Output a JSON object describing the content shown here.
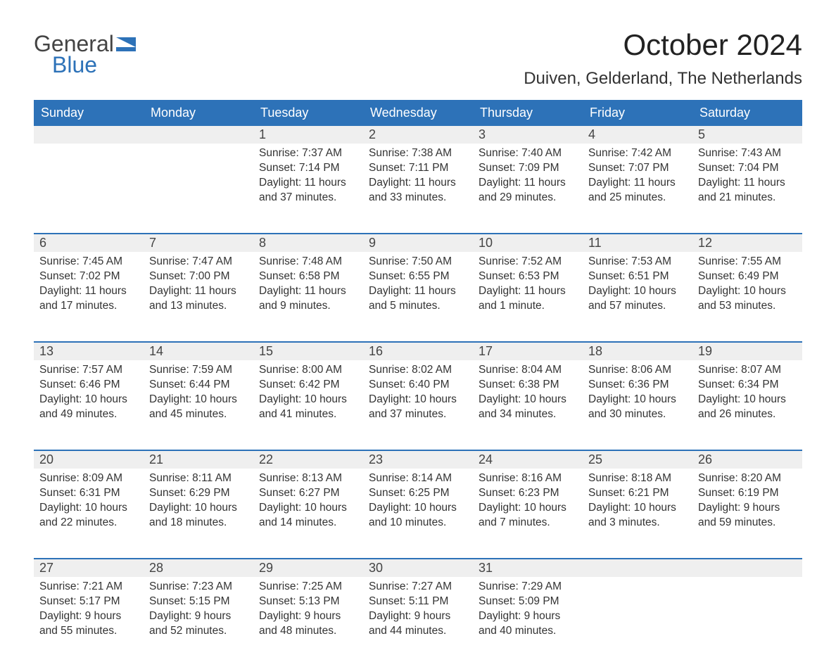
{
  "brand": {
    "part1": "General",
    "part2": "Blue",
    "flag_color": "#2d72b8"
  },
  "title": "October 2024",
  "location": "Duiven, Gelderland, The Netherlands",
  "colors": {
    "header_bg": "#2d72b8",
    "header_text": "#ffffff",
    "daynum_bg": "#efefef",
    "row_border": "#2d72b8",
    "text": "#333333",
    "page_bg": "#ffffff"
  },
  "layout": {
    "columns": 7,
    "rows": 5,
    "first_day_column": 2,
    "days_in_month": 31,
    "font_family": "Arial",
    "body_fontsize": 15.5,
    "header_fontsize": 18,
    "title_fontsize": 42,
    "location_fontsize": 24
  },
  "weekdays": [
    "Sunday",
    "Monday",
    "Tuesday",
    "Wednesday",
    "Thursday",
    "Friday",
    "Saturday"
  ],
  "days": {
    "1": {
      "sunrise": "7:37 AM",
      "sunset": "7:14 PM",
      "daylight": "11 hours and 37 minutes."
    },
    "2": {
      "sunrise": "7:38 AM",
      "sunset": "7:11 PM",
      "daylight": "11 hours and 33 minutes."
    },
    "3": {
      "sunrise": "7:40 AM",
      "sunset": "7:09 PM",
      "daylight": "11 hours and 29 minutes."
    },
    "4": {
      "sunrise": "7:42 AM",
      "sunset": "7:07 PM",
      "daylight": "11 hours and 25 minutes."
    },
    "5": {
      "sunrise": "7:43 AM",
      "sunset": "7:04 PM",
      "daylight": "11 hours and 21 minutes."
    },
    "6": {
      "sunrise": "7:45 AM",
      "sunset": "7:02 PM",
      "daylight": "11 hours and 17 minutes."
    },
    "7": {
      "sunrise": "7:47 AM",
      "sunset": "7:00 PM",
      "daylight": "11 hours and 13 minutes."
    },
    "8": {
      "sunrise": "7:48 AM",
      "sunset": "6:58 PM",
      "daylight": "11 hours and 9 minutes."
    },
    "9": {
      "sunrise": "7:50 AM",
      "sunset": "6:55 PM",
      "daylight": "11 hours and 5 minutes."
    },
    "10": {
      "sunrise": "7:52 AM",
      "sunset": "6:53 PM",
      "daylight": "11 hours and 1 minute."
    },
    "11": {
      "sunrise": "7:53 AM",
      "sunset": "6:51 PM",
      "daylight": "10 hours and 57 minutes."
    },
    "12": {
      "sunrise": "7:55 AM",
      "sunset": "6:49 PM",
      "daylight": "10 hours and 53 minutes."
    },
    "13": {
      "sunrise": "7:57 AM",
      "sunset": "6:46 PM",
      "daylight": "10 hours and 49 minutes."
    },
    "14": {
      "sunrise": "7:59 AM",
      "sunset": "6:44 PM",
      "daylight": "10 hours and 45 minutes."
    },
    "15": {
      "sunrise": "8:00 AM",
      "sunset": "6:42 PM",
      "daylight": "10 hours and 41 minutes."
    },
    "16": {
      "sunrise": "8:02 AM",
      "sunset": "6:40 PM",
      "daylight": "10 hours and 37 minutes."
    },
    "17": {
      "sunrise": "8:04 AM",
      "sunset": "6:38 PM",
      "daylight": "10 hours and 34 minutes."
    },
    "18": {
      "sunrise": "8:06 AM",
      "sunset": "6:36 PM",
      "daylight": "10 hours and 30 minutes."
    },
    "19": {
      "sunrise": "8:07 AM",
      "sunset": "6:34 PM",
      "daylight": "10 hours and 26 minutes."
    },
    "20": {
      "sunrise": "8:09 AM",
      "sunset": "6:31 PM",
      "daylight": "10 hours and 22 minutes."
    },
    "21": {
      "sunrise": "8:11 AM",
      "sunset": "6:29 PM",
      "daylight": "10 hours and 18 minutes."
    },
    "22": {
      "sunrise": "8:13 AM",
      "sunset": "6:27 PM",
      "daylight": "10 hours and 14 minutes."
    },
    "23": {
      "sunrise": "8:14 AM",
      "sunset": "6:25 PM",
      "daylight": "10 hours and 10 minutes."
    },
    "24": {
      "sunrise": "8:16 AM",
      "sunset": "6:23 PM",
      "daylight": "10 hours and 7 minutes."
    },
    "25": {
      "sunrise": "8:18 AM",
      "sunset": "6:21 PM",
      "daylight": "10 hours and 3 minutes."
    },
    "26": {
      "sunrise": "8:20 AM",
      "sunset": "6:19 PM",
      "daylight": "9 hours and 59 minutes."
    },
    "27": {
      "sunrise": "7:21 AM",
      "sunset": "5:17 PM",
      "daylight": "9 hours and 55 minutes."
    },
    "28": {
      "sunrise": "7:23 AM",
      "sunset": "5:15 PM",
      "daylight": "9 hours and 52 minutes."
    },
    "29": {
      "sunrise": "7:25 AM",
      "sunset": "5:13 PM",
      "daylight": "9 hours and 48 minutes."
    },
    "30": {
      "sunrise": "7:27 AM",
      "sunset": "5:11 PM",
      "daylight": "9 hours and 44 minutes."
    },
    "31": {
      "sunrise": "7:29 AM",
      "sunset": "5:09 PM",
      "daylight": "9 hours and 40 minutes."
    }
  },
  "labels": {
    "sunrise": "Sunrise: ",
    "sunset": "Sunset: ",
    "daylight": "Daylight: "
  }
}
